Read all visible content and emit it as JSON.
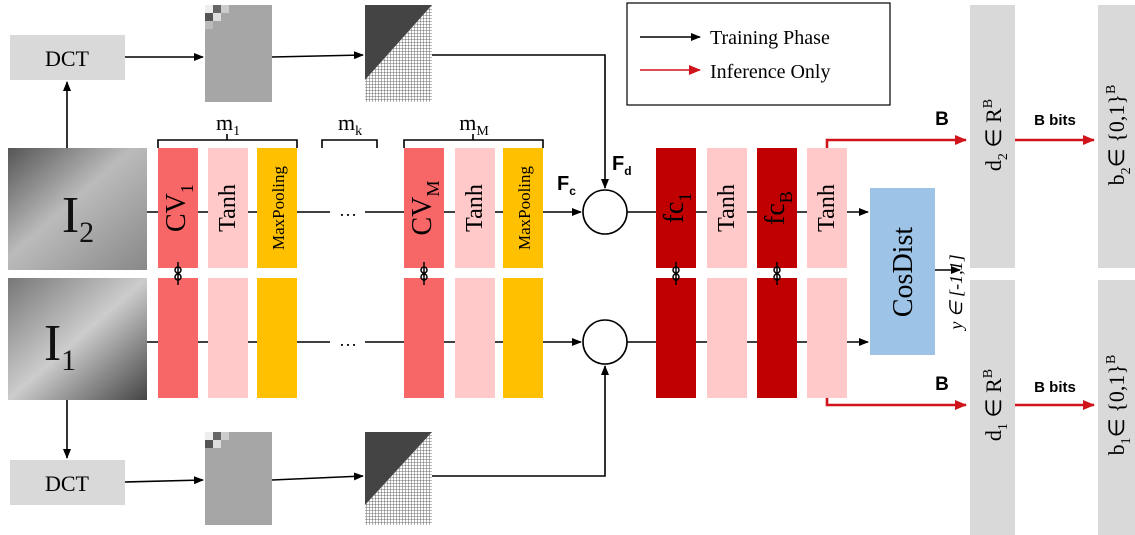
{
  "legend": {
    "training": "Training Phase",
    "inference": "Inference Only"
  },
  "dct": [
    "DCT",
    "DCT"
  ],
  "inputs": [
    {
      "base": "I",
      "sub": "2"
    },
    {
      "base": "I",
      "sub": "1"
    }
  ],
  "groups": [
    {
      "base": "m",
      "sub": "1"
    },
    {
      "base": "m",
      "sub": "k"
    },
    {
      "base": "m",
      "sub": "M"
    }
  ],
  "ellipsis": [
    "…",
    "…"
  ],
  "conv_layers": [
    {
      "base": "CV",
      "sub": "1"
    },
    {
      "base": "Tanh"
    },
    {
      "base": "MaxPooling"
    },
    {
      "base": "CV",
      "sub": "M"
    },
    {
      "base": "Tanh"
    },
    {
      "base": "MaxPooling"
    }
  ],
  "features": [
    {
      "base": "F",
      "sub": "c"
    },
    {
      "base": "F",
      "sub": "d"
    }
  ],
  "fc_layers": [
    {
      "base": "fc",
      "sub": "1"
    },
    {
      "base": "Tanh"
    },
    {
      "base": "fc",
      "sub": "B"
    },
    {
      "base": "Tanh"
    }
  ],
  "cosdist": "CosDist",
  "y_range": "y ∈ [-1,1]",
  "outputs": [
    {
      "size": "B",
      "bits": "B bits",
      "d": {
        "base": "d",
        "sub": "2",
        "rest": " ∈ R",
        "sup": "B"
      },
      "b": {
        "base": "b",
        "sub": "2",
        "rest": "∈ {0,1}",
        "sup": "B"
      }
    },
    {
      "size": "B",
      "bits": "B bits",
      "d": {
        "base": "d",
        "sub": "1",
        "rest": " ∈ R",
        "sup": "B"
      },
      "b": {
        "base": "b",
        "sub": "1",
        "rest": "∈ {0,1}",
        "sup": "B"
      }
    }
  ]
}
